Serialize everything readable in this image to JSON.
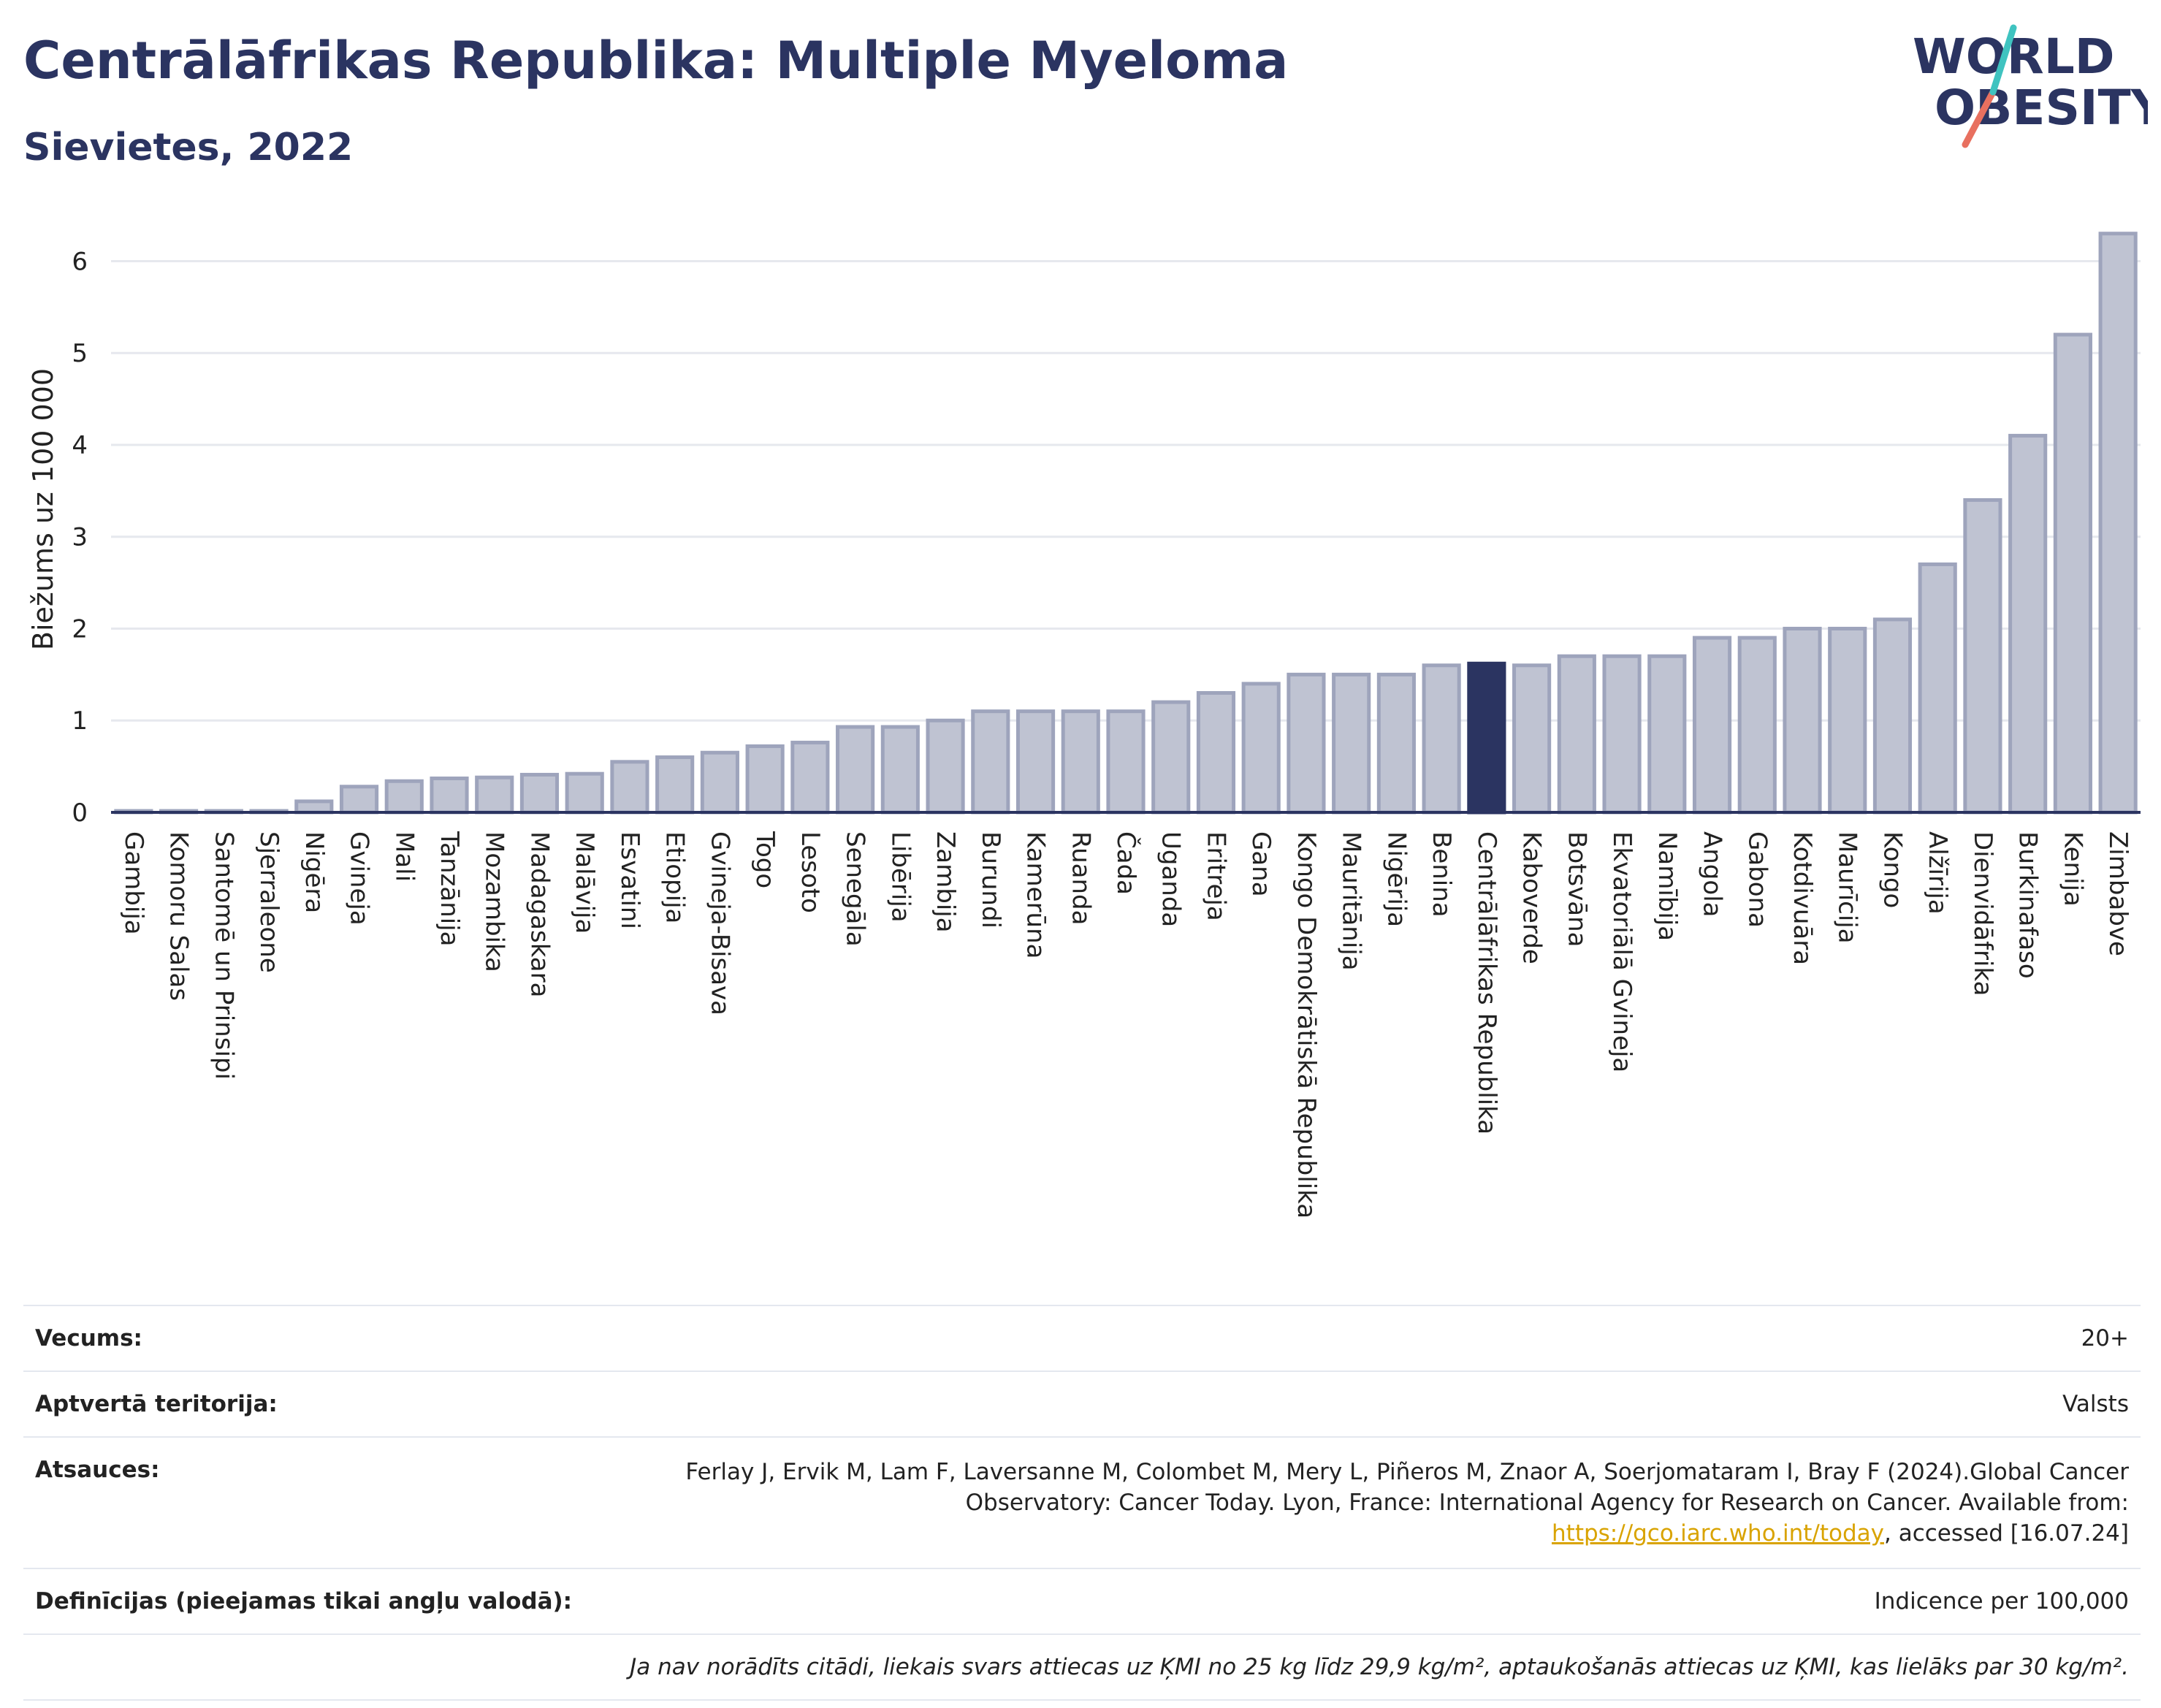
{
  "title": "Centrālāfrikas Republika: Multiple Myeloma",
  "subtitle": "Sievietes, 2022",
  "logo": {
    "line1": "WORLD",
    "line2": "OBESITY"
  },
  "chart_data": {
    "type": "bar",
    "title": "Centrālāfrikas Republika: Multiple Myeloma",
    "subtitle": "Sievietes, 2022",
    "ylabel": "Biežums uz 100 000",
    "xlabel": "",
    "ylim": [
      0,
      6.6
    ],
    "yticks": [
      0,
      1,
      2,
      3,
      4,
      5,
      6
    ],
    "grid": true,
    "highlight": "Centrālāfrikas Republika",
    "colors": {
      "bar": "#bfc3d2",
      "bar_border": "#9ea4bc",
      "highlight": "#2b3461",
      "grid": "#e6e8ee",
      "axis": "#2b3461"
    },
    "categories": [
      "Gambija",
      "Komoru Salas",
      "Santomē un Prinsipi",
      "Sjerraleone",
      "Nigēra",
      "Gvineja",
      "Mali",
      "Tanzānija",
      "Mozambika",
      "Madagaskara",
      "Malāvija",
      "Esvatini",
      "Etiopija",
      "Gvineja-Bisava",
      "Togo",
      "Lesoto",
      "Senegāla",
      "Libērija",
      "Zambija",
      "Burundi",
      "Kamerūna",
      "Ruanda",
      "Čada",
      "Uganda",
      "Eritreja",
      "Gana",
      "Kongo Demokrātiskā Republika",
      "Mauritānija",
      "Nigērija",
      "Benina",
      "Centrālāfrikas Republika",
      "Kaboverde",
      "Botsvāna",
      "Ekvatoriālā Gvineja",
      "Namībija",
      "Angola",
      "Gabona",
      "Kotdivuāra",
      "Maurīcija",
      "Kongo",
      "Alžīrija",
      "Dienvidāfrika",
      "Burkinafaso",
      "Kenija",
      "Zimbabve"
    ],
    "values": [
      0.01,
      0.01,
      0.01,
      0.01,
      0.12,
      0.28,
      0.34,
      0.37,
      0.38,
      0.41,
      0.42,
      0.55,
      0.6,
      0.65,
      0.72,
      0.76,
      0.93,
      0.93,
      1.0,
      1.1,
      1.1,
      1.1,
      1.1,
      1.2,
      1.3,
      1.4,
      1.5,
      1.5,
      1.5,
      1.6,
      1.62,
      1.6,
      1.7,
      1.7,
      1.7,
      1.9,
      1.9,
      2.0,
      2.0,
      2.1,
      2.7,
      3.4,
      4.1,
      5.2,
      6.3
    ]
  },
  "info": {
    "age": {
      "label": "Vecums:",
      "value": "20+"
    },
    "territory": {
      "label": "Aptvertā teritorija:",
      "value": "Valsts"
    },
    "references": {
      "label": "Atsauces:",
      "text_before": "Ferlay J, Ervik M, Lam F, Laversanne M, Colombet M, Mery L, Piñeros M, Znaor A, Soerjomataram I, Bray F (2024).Global Cancer Observatory: Cancer Today. Lyon, France: International Agency for Research on Cancer. Available from: ",
      "link": "https://gco.iarc.who.int/today",
      "text_after": ", accessed [16.07.24]"
    },
    "definitions": {
      "label": "Definīcijas (pieejamas tikai angļu valodā):",
      "value": "Indicence per 100,000"
    },
    "note": "Ja nav norādīts citādi, liekais svars attiecas uz ĶMI no 25 kg līdz 29,9 kg/m², aptaukošanās attiecas uz ĶMI, kas lielāks par 30 kg/m²."
  }
}
